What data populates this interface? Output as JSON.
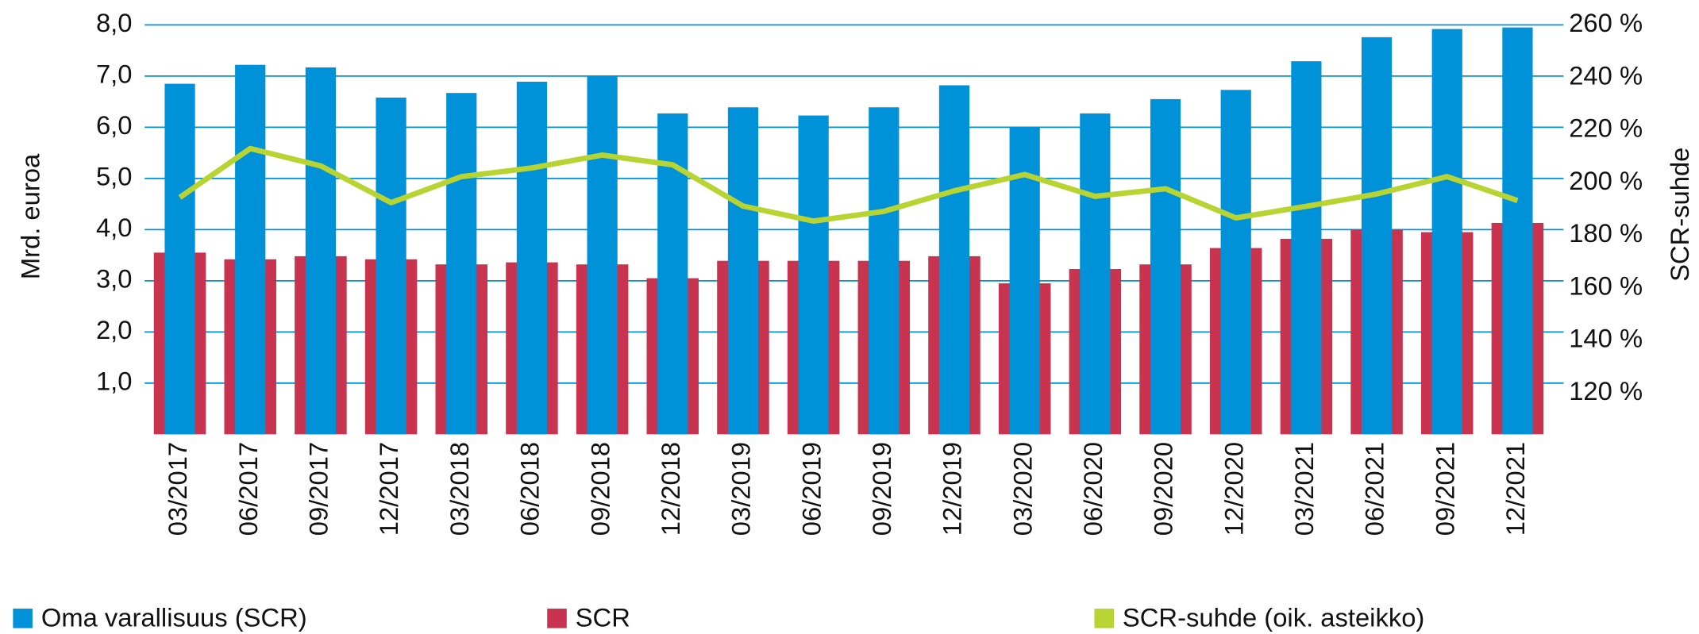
{
  "chart_data": {
    "type": "bar",
    "y_label": "Mrd. euroa",
    "y2_label": "SCR-suhde",
    "categories": [
      "03/2017",
      "06/2017",
      "09/2017",
      "12/2017",
      "03/2018",
      "06/2018",
      "09/2018",
      "12/2018",
      "03/2019",
      "06/2019",
      "09/2019",
      "12/2019",
      "03/2020",
      "06/2020",
      "09/2020",
      "12/2020",
      "03/2021",
      "06/2021",
      "09/2021",
      "12/2021"
    ],
    "series": [
      {
        "name": "Oma varallisuus (SCR)",
        "color": "#0092d8",
        "type": "bar",
        "values": [
          6.85,
          7.22,
          7.17,
          6.58,
          6.67,
          6.89,
          7.0,
          6.27,
          6.39,
          6.23,
          6.39,
          6.82,
          6.0,
          6.27,
          6.55,
          6.73,
          7.29,
          7.76,
          7.92,
          7.95
        ]
      },
      {
        "name": "SCR",
        "color": "#c8334f",
        "type": "bar",
        "values": [
          3.55,
          3.42,
          3.48,
          3.42,
          3.32,
          3.36,
          3.32,
          3.05,
          3.39,
          3.39,
          3.39,
          3.48,
          2.95,
          3.23,
          3.32,
          3.64,
          3.82,
          4.0,
          3.95,
          4.13
        ]
      },
      {
        "name": "SCR-suhde (oik. asteikko)",
        "color": "#b8d432",
        "type": "line",
        "axis": "y2",
        "values": [
          194.4,
          213,
          206.4,
          192.4,
          202.3,
          205.6,
          210.5,
          206.8,
          191.1,
          185.4,
          189.1,
          196.9,
          203.1,
          194.8,
          197.7,
          186.6,
          191,
          195.7,
          202.3,
          193.2
        ]
      }
    ],
    "ylim": [
      0,
      8
    ],
    "yticks": [
      {
        "value": 1,
        "label": "1,0"
      },
      {
        "value": 2,
        "label": "2,0"
      },
      {
        "value": 3,
        "label": "3,0"
      },
      {
        "value": 4,
        "label": "4,0"
      },
      {
        "value": 5,
        "label": "5,0"
      },
      {
        "value": 6,
        "label": "6,0"
      },
      {
        "value": 7,
        "label": "7,0"
      },
      {
        "value": 8,
        "label": "8,0"
      }
    ],
    "y2lim": [
      104.3,
      260
    ],
    "y2ticks": [
      {
        "value": 120,
        "label": "120 %"
      },
      {
        "value": 140,
        "label": "140 %"
      },
      {
        "value": 160,
        "label": "160 %"
      },
      {
        "value": 180,
        "label": "180 %"
      },
      {
        "value": 200,
        "label": "200 %"
      },
      {
        "value": 220,
        "label": "220 %"
      },
      {
        "value": 240,
        "label": "240 %"
      },
      {
        "value": 260,
        "label": "260 %"
      }
    ],
    "grid": true
  }
}
